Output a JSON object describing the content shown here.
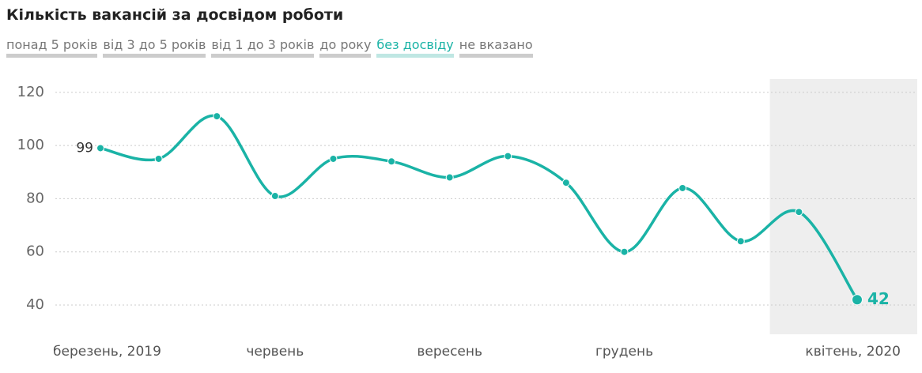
{
  "tabs": [
    "понад 5 років",
    "від 3 до 5 років",
    "від 1 до 3 років",
    "до року",
    "без досвіду",
    "не вказано"
  ],
  "active_tab": 4,
  "chart_data": {
    "type": "line",
    "title": "Кількість вакансій за досвідом роботи",
    "categories": [
      "березень, 2019",
      null,
      null,
      "червень",
      null,
      null,
      "вересень",
      null,
      null,
      "грудень",
      null,
      null,
      null,
      "квітень, 2020"
    ],
    "values": [
      99,
      95,
      111,
      81,
      95,
      94,
      88,
      96,
      86,
      60,
      84,
      64,
      75,
      42
    ],
    "color": "#1ab3a6",
    "ylim": [
      29,
      125
    ],
    "yticks": [
      40,
      60,
      80,
      100,
      120
    ],
    "grid": true
  }
}
